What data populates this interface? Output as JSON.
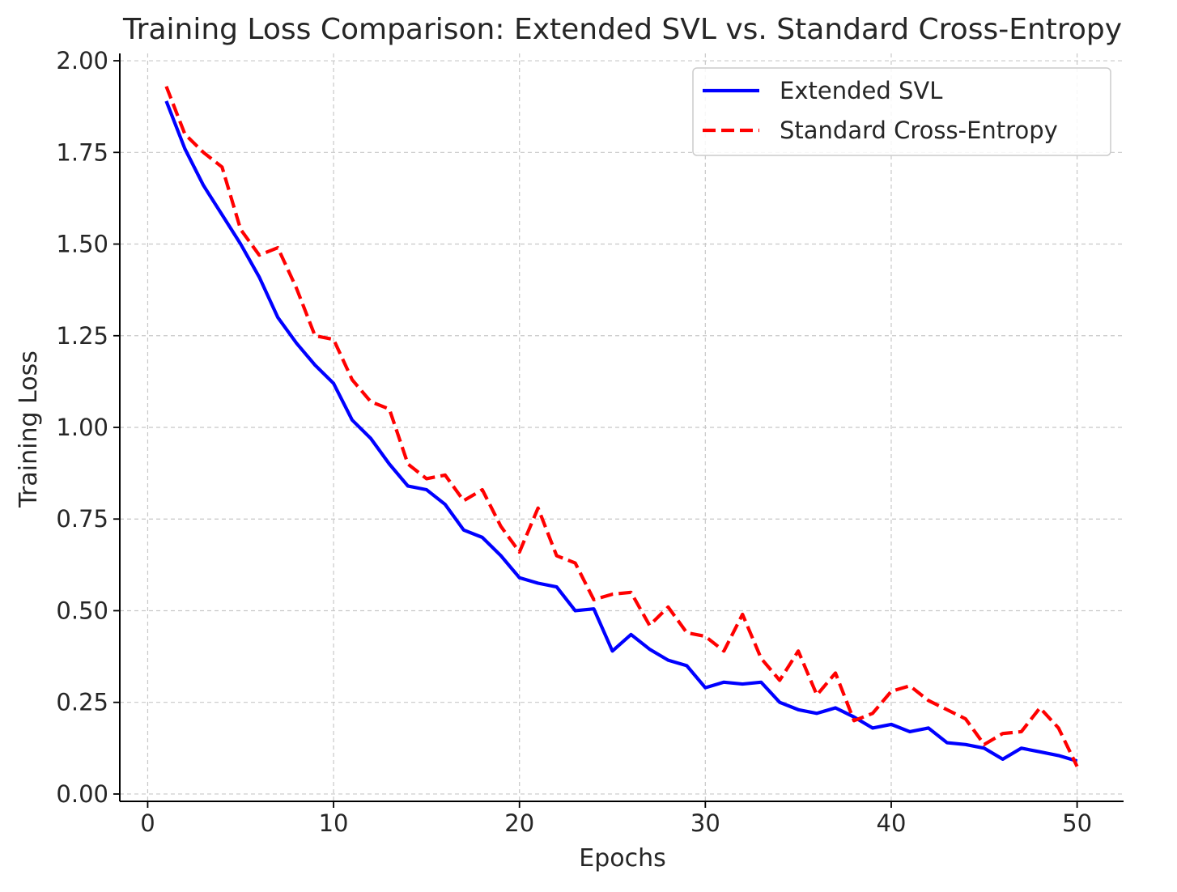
{
  "chart_data": {
    "type": "line",
    "title": "Training Loss Comparison: Extended SVL vs. Standard Cross-Entropy",
    "xlabel": "Epochs",
    "ylabel": "Training Loss",
    "xlim": [
      -1.5,
      52.5
    ],
    "ylim": [
      -0.02,
      2.02
    ],
    "xticks": [
      0,
      10,
      20,
      30,
      40,
      50
    ],
    "xtick_labels": [
      "0",
      "10",
      "20",
      "30",
      "40",
      "50"
    ],
    "yticks": [
      0,
      0.25,
      0.5,
      0.75,
      1.0,
      1.25,
      1.5,
      1.75,
      2.0
    ],
    "ytick_labels": [
      "0.00",
      "0.25",
      "0.50",
      "0.75",
      "1.00",
      "1.25",
      "1.50",
      "1.75",
      "2.00"
    ],
    "grid": true,
    "legend_position": "top-right",
    "x": [
      1,
      2,
      3,
      4,
      5,
      6,
      7,
      8,
      9,
      10,
      11,
      12,
      13,
      14,
      15,
      16,
      17,
      18,
      19,
      20,
      21,
      22,
      23,
      24,
      25,
      26,
      27,
      28,
      29,
      30,
      31,
      32,
      33,
      34,
      35,
      36,
      37,
      38,
      39,
      40,
      41,
      42,
      43,
      44,
      45,
      46,
      47,
      48,
      49,
      50
    ],
    "series": [
      {
        "name": "Extended SVL",
        "color": "#0000ff",
        "style": "solid",
        "values": [
          1.89,
          1.76,
          1.66,
          1.58,
          1.5,
          1.41,
          1.3,
          1.23,
          1.17,
          1.12,
          1.02,
          0.97,
          0.9,
          0.84,
          0.83,
          0.79,
          0.72,
          0.7,
          0.65,
          0.59,
          0.575,
          0.565,
          0.5,
          0.505,
          0.39,
          0.435,
          0.395,
          0.365,
          0.35,
          0.29,
          0.305,
          0.3,
          0.305,
          0.25,
          0.23,
          0.22,
          0.235,
          0.21,
          0.18,
          0.19,
          0.17,
          0.18,
          0.14,
          0.135,
          0.125,
          0.095,
          0.125,
          0.115,
          0.105,
          0.09
        ]
      },
      {
        "name": "Standard Cross-Entropy",
        "color": "#ff0000",
        "style": "dashed",
        "values": [
          1.93,
          1.8,
          1.75,
          1.71,
          1.54,
          1.47,
          1.49,
          1.38,
          1.25,
          1.24,
          1.13,
          1.07,
          1.05,
          0.9,
          0.86,
          0.87,
          0.8,
          0.83,
          0.73,
          0.66,
          0.78,
          0.65,
          0.63,
          0.53,
          0.545,
          0.55,
          0.46,
          0.51,
          0.44,
          0.43,
          0.39,
          0.49,
          0.37,
          0.31,
          0.39,
          0.27,
          0.33,
          0.2,
          0.22,
          0.28,
          0.295,
          0.255,
          0.23,
          0.205,
          0.135,
          0.165,
          0.17,
          0.235,
          0.18,
          0.075
        ]
      }
    ]
  }
}
